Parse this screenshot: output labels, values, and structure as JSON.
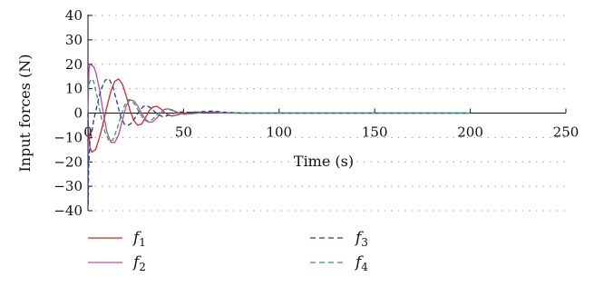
{
  "chart_data": {
    "type": "line",
    "title": "",
    "xlabel": "Time (s)",
    "ylabel": "Input forces (N)",
    "xlim": [
      0,
      250
    ],
    "ylim": [
      -40,
      40
    ],
    "xticks": [
      0,
      50,
      100,
      150,
      200,
      250
    ],
    "yticks": [
      40,
      30,
      20,
      10,
      0,
      -10,
      -20,
      -30,
      -40
    ],
    "xtick_labels": [
      "0",
      "50",
      "100",
      "150",
      "200",
      "250"
    ],
    "ytick_labels": [
      "40",
      "30",
      "20",
      "10",
      "0",
      "−10",
      "−20",
      "−30",
      "−40"
    ],
    "grid": "dotted-horizontal",
    "legend_position": "bottom",
    "series": [
      {
        "name": "f1",
        "label_base": "f",
        "label_sub": "1",
        "color": "#d62728",
        "dash": "solid",
        "x": [
          0,
          0.3,
          1,
          2,
          4,
          6,
          8,
          10,
          12,
          14,
          16,
          18,
          20,
          22,
          24,
          26,
          28,
          30,
          32,
          34,
          36,
          38,
          40,
          42,
          44,
          46,
          48,
          50,
          55,
          60,
          65,
          70,
          80,
          100,
          150,
          200
        ],
        "y": [
          0,
          -7,
          -14,
          -16,
          -15,
          -10,
          -4,
          3,
          9,
          13,
          14,
          12,
          7,
          1,
          -3,
          -5,
          -4.5,
          -2,
          1,
          2.5,
          2.8,
          1.8,
          0.3,
          -0.8,
          -1.2,
          -0.9,
          -0.4,
          0,
          0.4,
          0.3,
          0.2,
          0,
          0,
          0,
          0,
          0
        ]
      },
      {
        "name": "f2",
        "label_base": "f",
        "label_sub": "2",
        "color": "#c04aa8",
        "dash": "solid",
        "x": [
          0,
          0.5,
          1,
          2,
          3,
          4,
          6,
          8,
          10,
          12,
          14,
          16,
          18,
          20,
          22,
          24,
          26,
          28,
          30,
          32,
          34,
          36,
          38,
          40,
          42,
          44,
          46,
          48,
          50,
          55,
          60,
          65,
          70,
          80,
          100,
          150,
          200
        ],
        "y": [
          0,
          18,
          20,
          19.5,
          19,
          17,
          10,
          0,
          -8,
          -12,
          -12,
          -9,
          -3,
          3,
          5.5,
          5,
          3,
          0,
          -2.5,
          -3.8,
          -3.5,
          -2,
          0,
          1.4,
          1.8,
          1.3,
          0.6,
          0,
          -0.4,
          -0.2,
          0.2,
          0.3,
          0.1,
          0,
          0,
          0,
          0
        ]
      },
      {
        "name": "f3",
        "label_base": "f",
        "label_sub": "3",
        "color": "#2b3a8f",
        "dash": "dashed",
        "x": [
          0,
          0.15,
          0.4,
          1,
          2,
          3,
          5,
          7,
          9,
          11,
          13,
          15,
          17,
          19,
          21,
          23,
          25,
          27,
          29,
          31,
          33,
          35,
          37,
          39,
          41,
          43,
          45,
          47,
          50,
          55,
          60,
          65,
          70,
          80,
          100,
          150,
          200
        ],
        "y": [
          0,
          -38,
          -22,
          -12,
          -8,
          -3,
          4,
          10,
          13.5,
          14,
          11,
          5,
          -1,
          -4.5,
          -5,
          -4,
          -1.5,
          1,
          2.7,
          3,
          2,
          0.5,
          -0.8,
          -1.4,
          -1.2,
          -0.6,
          0,
          0.4,
          0.5,
          0.2,
          0.6,
          0.8,
          0.4,
          0,
          0,
          0,
          0
        ]
      },
      {
        "name": "f4",
        "label_base": "f",
        "label_sub": "4",
        "color": "#2e9e56",
        "dash": "dashed",
        "x": [
          0,
          0.3,
          1,
          2,
          3,
          5,
          7,
          9,
          11,
          13,
          15,
          17,
          19,
          21,
          23,
          25,
          27,
          29,
          31,
          33,
          35,
          37,
          39,
          41,
          43,
          45,
          47,
          50,
          55,
          60,
          65,
          70,
          80,
          100,
          150,
          200
        ],
        "y": [
          0,
          10,
          13,
          14,
          13,
          6,
          -2,
          -8,
          -11.5,
          -11,
          -7,
          -2,
          3,
          5.5,
          5,
          3,
          0,
          -2.3,
          -3.5,
          -3,
          -1.6,
          0,
          1.2,
          1.8,
          1.4,
          0.6,
          0,
          -0.5,
          -0.2,
          0.3,
          0.5,
          0.2,
          0,
          0,
          0,
          0
        ]
      }
    ]
  }
}
